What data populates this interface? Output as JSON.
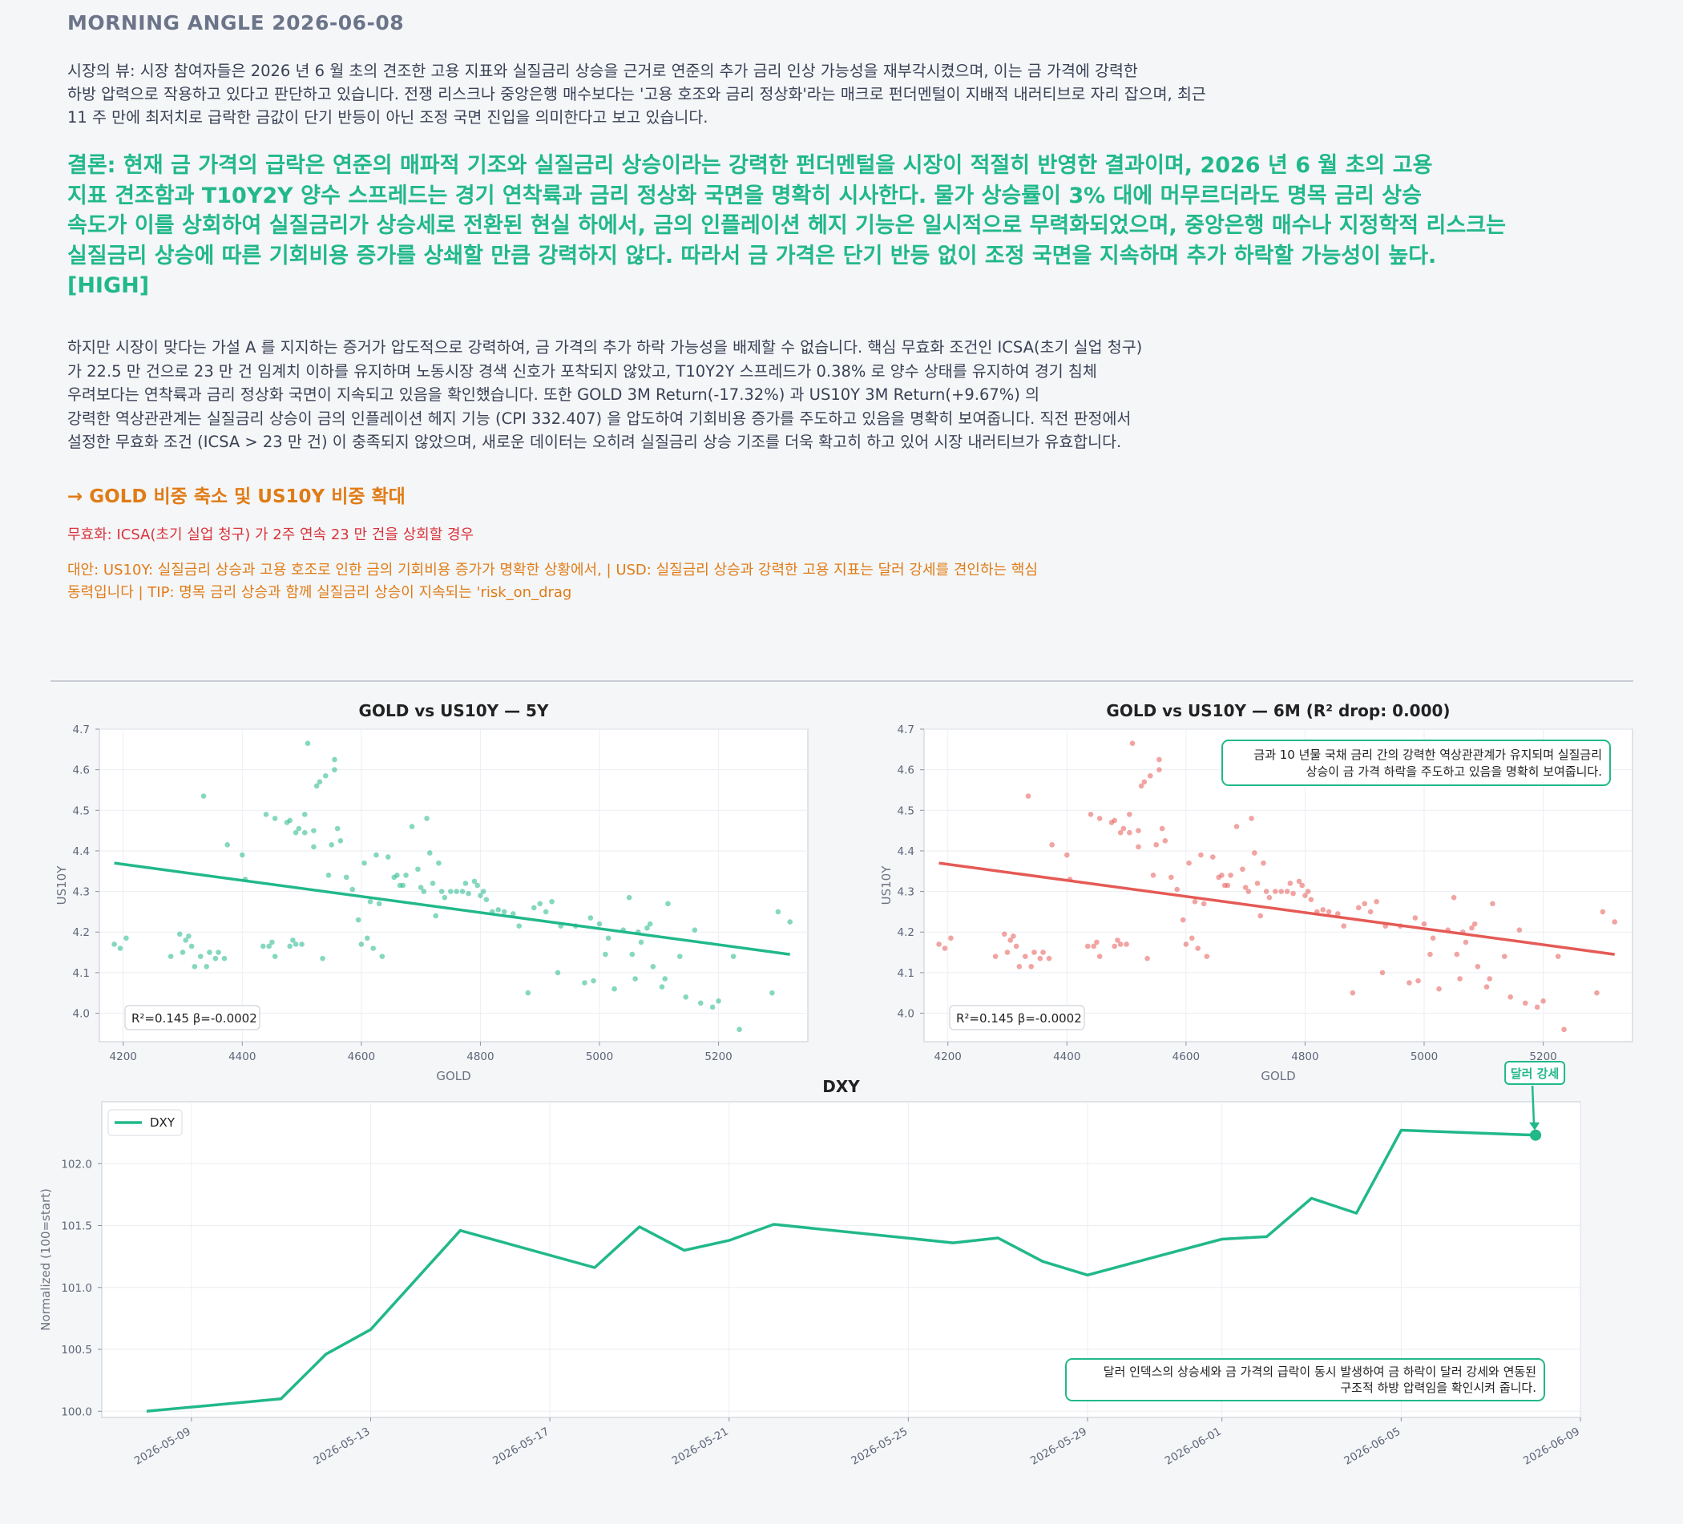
{
  "header": {
    "title": "MORNING ANGLE  2026-06-08"
  },
  "market_view": {
    "lines": [
      "시장의 뷰: 시장 참여자들은 2026 년 6 월 초의 견조한 고용 지표와 실질금리 상승을 근거로 연준의 추가 금리 인상 가능성을 재부각시켰으며, 이는 금 가격에 강력한",
      "하방 압력으로 작용하고 있다고 판단하고 있습니다. 전쟁 리스크나 중앙은행 매수보다는 '고용 호조와 금리 정상화'라는 매크로 펀더멘털이 지배적 내러티브로 자리 잡으며, 최근",
      "11 주 만에 최저치로 급락한 금값이 단기 반등이 아닌 조정 국면 진입을 의미한다고 보고 있습니다."
    ]
  },
  "conclusion": {
    "lines": [
      "결론: 현재 금 가격의 급락은 연준의 매파적 기조와 실질금리 상승이라는 강력한 펀더멘털을 시장이 적절히 반영한 결과이며, 2026 년 6 월 초의 고용",
      "지표 견조함과 T10Y2Y 양수 스프레드는 경기 연착륙과 금리 정상화 국면을 명확히 시사한다. 물가 상승률이 3% 대에 머무르더라도 명목 금리 상승",
      "속도가 이를 상회하여 실질금리가 상승세로 전환된 현실 하에서, 금의 인플레이션 헤지 기능은 일시적으로 무력화되었으며, 중앙은행 매수나 지정학적 리스크는",
      "실질금리 상승에 따른 기회비용 증가를 상쇄할 만큼 강력하지 않다. 따라서 금 가격은 단기 반등 없이 조정 국면을 지속하며 추가 하락할 가능성이 높다.",
      "[HIGH]"
    ]
  },
  "evidence": {
    "lines": [
      "하지만 시장이 맞다는 가설 A 를 지지하는 증거가 압도적으로 강력하여, 금 가격의 추가 하락 가능성을 배제할 수 없습니다. 핵심 무효화 조건인 ICSA(초기 실업 청구)",
      "가 22.5 만 건으로 23 만 건 임계치 이하를 유지하며 노동시장 경색 신호가 포착되지 않았고, T10Y2Y 스프레드가 0.38% 로 양수 상태를 유지하여 경기 침체",
      "우려보다는 연착륙과 금리 정상화 국면이 지속되고 있음을 확인했습니다. 또한 GOLD 3M Return(-17.32%) 과 US10Y 3M Return(+9.67%) 의",
      "강력한 역상관관계는 실질금리 상승이 금의 인플레이션 헤지 기능 (CPI 332.407) 을 압도하여 기회비용 증가를 주도하고 있음을 명확히 보여줍니다. 직전 판정에서",
      "설정한 무효화 조건 (ICSA > 23 만 건) 이 충족되지 않았으며, 새로운 데이터는 오히려 실질금리 상승 기조를 더욱 확고히 하고 있어 시장 내러티브가 유효합니다."
    ]
  },
  "action": {
    "text": "→ GOLD 비중 축소 및 US10Y 비중 확대"
  },
  "invalidation": {
    "text": "무효화: ICSA(초기 실업 청구) 가 2주 연속 23 만 건을 상회할 경우"
  },
  "alternatives": {
    "lines": [
      "대안: US10Y: 실질금리 상승과 고용 호조로 인한 금의 기회비용 증가가 명확한 상황에서, | USD: 실질금리 상승과 강력한 고용 지표는 달러 강세를 견인하는 핵심",
      "동력입니다 | TIP: 명목 금리 상승과 함께 실질금리 상승이 지속되는 'risk_on_drag"
    ]
  },
  "colors": {
    "green": "#21b88a",
    "red": "#e55a55",
    "orange": "#e07c16",
    "invalid_red": "#d9343b"
  },
  "chart_data": [
    {
      "type": "scatter",
      "title": "GOLD vs US10Y — 5Y",
      "xlabel": "GOLD",
      "ylabel": "US10Y",
      "xlim": [
        4160,
        5350
      ],
      "ylim": [
        3.93,
        4.7
      ],
      "xticks": [
        "4200",
        "4400",
        "4600",
        "4800",
        "5000",
        "5200"
      ],
      "yticks": [
        "4.0",
        "4.1",
        "4.2",
        "4.3",
        "4.4",
        "4.5",
        "4.6",
        "4.7"
      ],
      "stats_label": "R²=0.145  β=-0.0002",
      "regression": {
        "x": [
          4185,
          5320
        ],
        "y": [
          4.37,
          4.145
        ]
      },
      "color": "#21b88a",
      "points": [
        [
          4185,
          4.17
        ],
        [
          4195,
          4.16
        ],
        [
          4205,
          4.185
        ],
        [
          4280,
          4.14
        ],
        [
          4295,
          4.195
        ],
        [
          4300,
          4.15
        ],
        [
          4305,
          4.18
        ],
        [
          4310,
          4.19
        ],
        [
          4315,
          4.165
        ],
        [
          4320,
          4.115
        ],
        [
          4330,
          4.14
        ],
        [
          4335,
          4.535
        ],
        [
          4340,
          4.115
        ],
        [
          4345,
          4.15
        ],
        [
          4355,
          4.135
        ],
        [
          4360,
          4.15
        ],
        [
          4370,
          4.135
        ],
        [
          4375,
          4.415
        ],
        [
          4400,
          4.39
        ],
        [
          4405,
          4.33
        ],
        [
          4435,
          4.165
        ],
        [
          4440,
          4.49
        ],
        [
          4445,
          4.165
        ],
        [
          4450,
          4.175
        ],
        [
          4455,
          4.14
        ],
        [
          4455,
          4.48
        ],
        [
          4475,
          4.47
        ],
        [
          4480,
          4.475
        ],
        [
          4480,
          4.165
        ],
        [
          4485,
          4.18
        ],
        [
          4490,
          4.17
        ],
        [
          4490,
          4.445
        ],
        [
          4495,
          4.455
        ],
        [
          4500,
          4.17
        ],
        [
          4505,
          4.49
        ],
        [
          4505,
          4.445
        ],
        [
          4510,
          4.665
        ],
        [
          4520,
          4.45
        ],
        [
          4520,
          4.41
        ],
        [
          4525,
          4.56
        ],
        [
          4530,
          4.57
        ],
        [
          4535,
          4.135
        ],
        [
          4540,
          4.585
        ],
        [
          4545,
          4.34
        ],
        [
          4550,
          4.415
        ],
        [
          4555,
          4.6
        ],
        [
          4555,
          4.625
        ],
        [
          4560,
          4.455
        ],
        [
          4565,
          4.425
        ],
        [
          4575,
          4.335
        ],
        [
          4585,
          4.305
        ],
        [
          4595,
          4.23
        ],
        [
          4600,
          4.17
        ],
        [
          4605,
          4.37
        ],
        [
          4610,
          4.185
        ],
        [
          4615,
          4.275
        ],
        [
          4620,
          4.16
        ],
        [
          4625,
          4.39
        ],
        [
          4630,
          4.27
        ],
        [
          4635,
          4.14
        ],
        [
          4645,
          4.385
        ],
        [
          4655,
          4.335
        ],
        [
          4660,
          4.34
        ],
        [
          4665,
          4.315
        ],
        [
          4670,
          4.315
        ],
        [
          4675,
          4.34
        ],
        [
          4685,
          4.46
        ],
        [
          4695,
          4.355
        ],
        [
          4700,
          4.31
        ],
        [
          4705,
          4.3
        ],
        [
          4710,
          4.48
        ],
        [
          4715,
          4.395
        ],
        [
          4720,
          4.32
        ],
        [
          4725,
          4.24
        ],
        [
          4730,
          4.37
        ],
        [
          4735,
          4.3
        ],
        [
          4740,
          4.285
        ],
        [
          4750,
          4.3
        ],
        [
          4760,
          4.3
        ],
        [
          4770,
          4.3
        ],
        [
          4775,
          4.32
        ],
        [
          4780,
          4.295
        ],
        [
          4790,
          4.325
        ],
        [
          4795,
          4.315
        ],
        [
          4800,
          4.29
        ],
        [
          4805,
          4.3
        ],
        [
          4810,
          4.28
        ],
        [
          4820,
          4.25
        ],
        [
          4830,
          4.255
        ],
        [
          4840,
          4.25
        ],
        [
          4855,
          4.245
        ],
        [
          4865,
          4.215
        ],
        [
          4880,
          4.05
        ],
        [
          4890,
          4.26
        ],
        [
          4900,
          4.27
        ],
        [
          4910,
          4.25
        ],
        [
          4920,
          4.275
        ],
        [
          4930,
          4.1
        ],
        [
          4935,
          4.215
        ],
        [
          4960,
          4.215
        ],
        [
          4975,
          4.075
        ],
        [
          4985,
          4.235
        ],
        [
          4990,
          4.08
        ],
        [
          5000,
          4.22
        ],
        [
          5010,
          4.145
        ],
        [
          5015,
          4.185
        ],
        [
          5025,
          4.06
        ],
        [
          5040,
          4.205
        ],
        [
          5050,
          4.285
        ],
        [
          5055,
          4.145
        ],
        [
          5060,
          4.085
        ],
        [
          5065,
          4.2
        ],
        [
          5070,
          4.175
        ],
        [
          5080,
          4.21
        ],
        [
          5085,
          4.22
        ],
        [
          5090,
          4.115
        ],
        [
          5105,
          4.065
        ],
        [
          5110,
          4.085
        ],
        [
          5115,
          4.27
        ],
        [
          5135,
          4.14
        ],
        [
          5145,
          4.04
        ],
        [
          5160,
          4.205
        ],
        [
          5170,
          4.025
        ],
        [
          5190,
          4.015
        ],
        [
          5200,
          4.03
        ],
        [
          5225,
          4.14
        ],
        [
          5235,
          3.96
        ],
        [
          5290,
          4.05
        ],
        [
          5300,
          4.25
        ],
        [
          5320,
          4.225
        ]
      ]
    },
    {
      "type": "scatter",
      "title": "GOLD vs US10Y — 6M (R² drop: 0.000)",
      "xlabel": "GOLD",
      "ylabel": "US10Y",
      "xlim": [
        4160,
        5350
      ],
      "ylim": [
        3.93,
        4.7
      ],
      "xticks": [
        "4200",
        "4400",
        "4600",
        "4800",
        "5000",
        "5200"
      ],
      "yticks": [
        "4.0",
        "4.1",
        "4.2",
        "4.3",
        "4.4",
        "4.5",
        "4.6",
        "4.7"
      ],
      "stats_label": "R²=0.145  β=-0.0002",
      "annotation": [
        "금과 10 년물 국채 금리 간의 강력한 역상관관계가 유지되며 실질금리",
        "상승이 금 가격 하락을 주도하고 있음을 명확히 보여줍니다."
      ],
      "regression": {
        "x": [
          4185,
          5320
        ],
        "y": [
          4.37,
          4.145
        ]
      },
      "color": "#e55a55",
      "points_same_as_previous": true
    },
    {
      "type": "line",
      "title": "DXY",
      "ylabel": "Normalized (100=start)",
      "legend": "DXY",
      "legend_position": "top-left",
      "series": [
        {
          "name": "DXY",
          "x": [
            "2026-05-08",
            "2026-05-11",
            "2026-05-12",
            "2026-05-13",
            "2026-05-15",
            "2026-05-18",
            "2026-05-19",
            "2026-05-20",
            "2026-05-21",
            "2026-05-22",
            "2026-05-26",
            "2026-05-27",
            "2026-05-28",
            "2026-05-29",
            "2026-06-01",
            "2026-06-02",
            "2026-06-03",
            "2026-06-04",
            "2026-06-05",
            "2026-06-08"
          ],
          "values": [
            100.0,
            100.1,
            100.46,
            100.66,
            101.46,
            101.16,
            101.49,
            101.3,
            101.38,
            101.51,
            101.36,
            101.4,
            101.21,
            101.1,
            101.39,
            101.41,
            101.72,
            101.6,
            102.27,
            102.23
          ]
        }
      ],
      "xticks": [
        "2026-05-09",
        "2026-05-13",
        "2026-05-17",
        "2026-05-21",
        "2026-05-25",
        "2026-05-29",
        "2026-06-01",
        "2026-06-05",
        "2026-06-09"
      ],
      "yticks": [
        "100.0",
        "100.5",
        "101.0",
        "101.5",
        "102.0"
      ],
      "ylim": [
        99.95,
        102.5
      ],
      "xlim": [
        "2026-05-07",
        "2026-06-09"
      ],
      "marker_label": "달러 강세",
      "annotation": [
        "달러 인덱스의 상승세와 금 가격의 급락이 동시 발생하여 금 하락이 달러 강세와 연동된",
        "구조적 하방 압력임을 확인시켜 줍니다."
      ]
    }
  ]
}
